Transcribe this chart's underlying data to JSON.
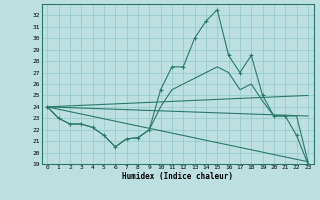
{
  "xlabel": "Humidex (Indice chaleur)",
  "bg_color": "#bce0e0",
  "grid_color": "#99cccc",
  "line_color": "#2a7a6a",
  "xlim": [
    -0.5,
    23.5
  ],
  "ylim": [
    19,
    33
  ],
  "yticks": [
    19,
    20,
    21,
    22,
    23,
    24,
    25,
    26,
    27,
    28,
    29,
    30,
    31,
    32
  ],
  "xticks": [
    0,
    1,
    2,
    3,
    4,
    5,
    6,
    7,
    8,
    9,
    10,
    11,
    12,
    13,
    14,
    15,
    16,
    17,
    18,
    19,
    20,
    21,
    22,
    23
  ],
  "main_line": {
    "x": [
      0,
      1,
      2,
      3,
      4,
      5,
      6,
      7,
      8,
      9,
      10,
      11,
      12,
      13,
      14,
      15,
      16,
      17,
      18,
      19,
      20,
      21,
      22,
      23
    ],
    "y": [
      24.0,
      23.0,
      22.5,
      22.5,
      22.2,
      21.5,
      20.5,
      21.2,
      21.3,
      22.0,
      25.5,
      27.5,
      27.5,
      30.0,
      31.5,
      32.5,
      28.5,
      27.0,
      28.5,
      25.0,
      23.2,
      23.2,
      21.5,
      19.0
    ]
  },
  "smooth_line": {
    "x": [
      0,
      1,
      2,
      3,
      4,
      5,
      6,
      7,
      8,
      9,
      10,
      11,
      12,
      13,
      14,
      15,
      16,
      17,
      18,
      19,
      20,
      21,
      22,
      23
    ],
    "y": [
      24.0,
      23.0,
      22.5,
      22.5,
      22.2,
      21.5,
      20.5,
      21.2,
      21.3,
      22.0,
      24.0,
      25.5,
      26.0,
      26.5,
      27.0,
      27.5,
      27.0,
      25.5,
      26.0,
      24.5,
      23.2,
      23.2,
      23.2,
      19.2
    ]
  },
  "straight_lines": [
    {
      "x0": 0,
      "y0": 24.0,
      "x1": 23,
      "y1": 23.2
    },
    {
      "x0": 0,
      "y0": 24.0,
      "x1": 23,
      "y1": 19.2
    },
    {
      "x0": 0,
      "y0": 24.0,
      "x1": 23,
      "y1": 25.0
    }
  ]
}
